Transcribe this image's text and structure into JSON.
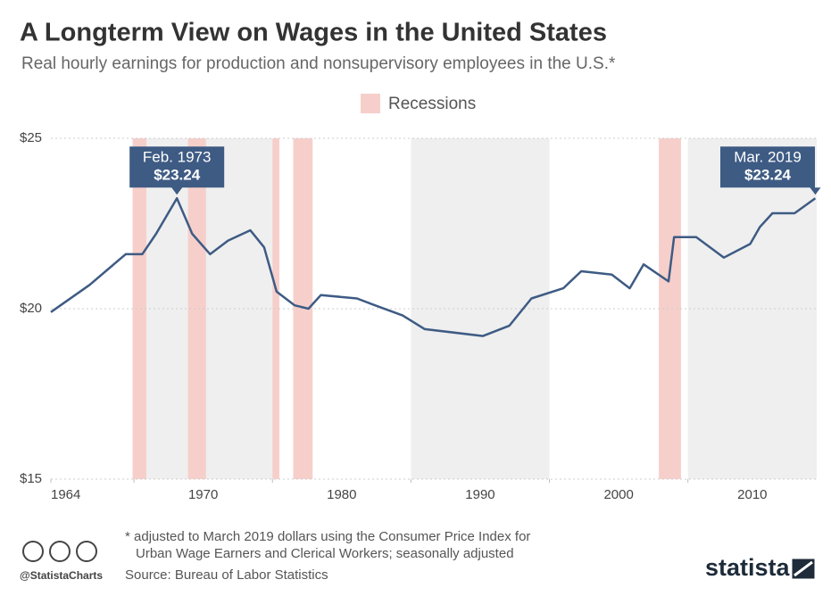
{
  "chart_data": {
    "type": "line",
    "title": "A Longterm View on Wages in the United States",
    "subtitle": "Real hourly earnings for production and nonsupervisory employees in the U.S.*",
    "legend_label": "Recessions",
    "recession_color": "#f6cfcb",
    "x": [
      1964,
      1966.8,
      1969.4,
      1970.6,
      1971.6,
      1973.1,
      1974.2,
      1975.5,
      1976.8,
      1978.4,
      1979.4,
      1980.3,
      1981.6,
      1982.6,
      1983.5,
      1986.1,
      1987.4,
      1989.4,
      1991,
      1995.2,
      1997.1,
      1998.7,
      2001,
      2002.3,
      2004.5,
      2005.8,
      2006.8,
      2008.6,
      2009,
      2010.6,
      2012.6,
      2014.5,
      2015.2,
      2016.1,
      2017.7,
      2019.2
    ],
    "series": [
      {
        "name": "Real hourly earnings",
        "color": "#3e5b84",
        "values": [
          19.9,
          20.7,
          21.6,
          21.6,
          22.2,
          23.24,
          22.2,
          21.6,
          22.0,
          22.3,
          21.8,
          20.5,
          20.1,
          20.0,
          20.4,
          20.3,
          20.1,
          19.8,
          19.4,
          19.2,
          19.5,
          20.3,
          20.6,
          21.1,
          21.0,
          20.6,
          21.3,
          20.8,
          22.1,
          22.1,
          21.5,
          21.9,
          22.4,
          22.8,
          22.8,
          23.24
        ]
      }
    ],
    "recessions": [
      [
        1969.9,
        1970.9
      ],
      [
        1973.9,
        1975.2
      ],
      [
        1980.0,
        1980.5
      ],
      [
        1981.5,
        1982.9
      ],
      [
        2007.9,
        2009.5
      ]
    ],
    "xlim": [
      1964,
      2019.3
    ],
    "xticks": [
      1964,
      1970,
      1980,
      1990,
      2000,
      2010
    ],
    "ylim": [
      15,
      25
    ],
    "yticks": [
      {
        "value": 15,
        "label": "$15"
      },
      {
        "value": 20,
        "label": "$20"
      },
      {
        "value": 25,
        "label": "$25"
      }
    ],
    "grid": true,
    "annotations": [
      {
        "point": 5,
        "text": "Feb. 1973",
        "value_label": "$23.24"
      },
      {
        "point": 35,
        "text": "Mar. 2019",
        "value_label": "$23.24"
      }
    ],
    "footnote_lines": [
      "* adjusted to March 2019 dollars using the Consumer Price Index for",
      "Urban Wage Earners and Clerical Workers; seasonally adjusted"
    ],
    "source": "Source: Bureau of Labor Statistics",
    "handle": "@StatistaCharts",
    "brand": "statista"
  }
}
